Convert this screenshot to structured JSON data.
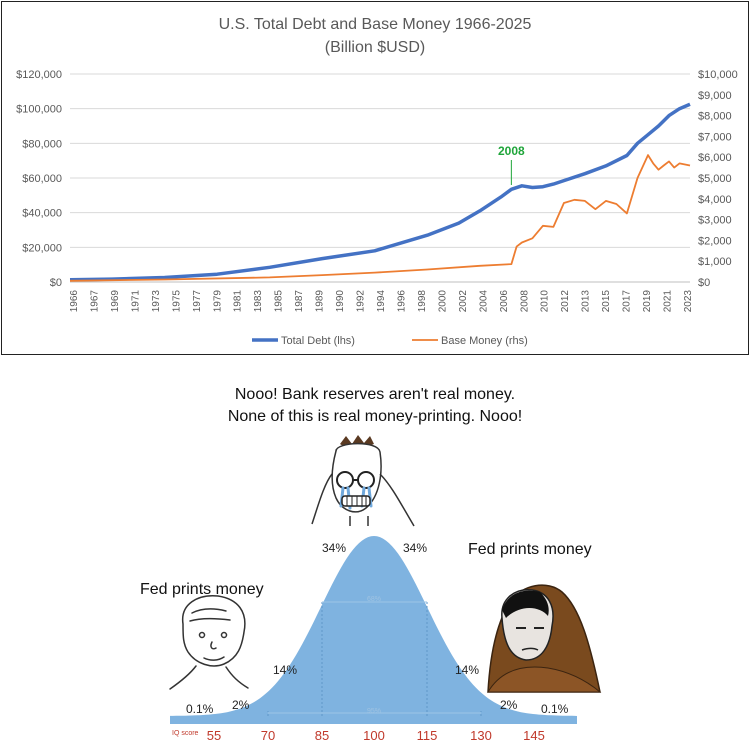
{
  "chart_data": {
    "type": "line",
    "title": "U.S. Total Debt and Base Money 1966-2025",
    "subtitle": "(Billion $USD)",
    "left_axis": {
      "ticks": [
        "$0",
        "$20,000",
        "$40,000",
        "$60,000",
        "$80,000",
        "$100,000",
        "$120,000"
      ],
      "range": [
        0,
        120000
      ]
    },
    "right_axis": {
      "ticks": [
        "$0",
        "$1,000",
        "$2,000",
        "$3,000",
        "$4,000",
        "$5,000",
        "$6,000",
        "$7,000",
        "$8,000",
        "$9,000",
        "$10,000"
      ],
      "range": [
        0,
        10000
      ]
    },
    "x_ticks": [
      "1966",
      "1967",
      "1969",
      "1971",
      "1973",
      "1975",
      "1977",
      "1979",
      "1981",
      "1983",
      "1985",
      "1987",
      "1989",
      "1990",
      "1992",
      "1994",
      "1996",
      "1998",
      "2000",
      "2002",
      "2004",
      "2006",
      "2008",
      "2010",
      "2012",
      "2013",
      "2015",
      "2017",
      "2019",
      "2021",
      "2023"
    ],
    "annotation": {
      "label": "2008",
      "x": 2008,
      "color": "#1fa53a"
    },
    "grid": "horizontal",
    "legend_position": "bottom",
    "series": [
      {
        "name": "Total Debt (lhs)",
        "axis": "left",
        "color": "#4472c4",
        "points": [
          [
            1966,
            1300
          ],
          [
            1970,
            1700
          ],
          [
            1975,
            2600
          ],
          [
            1980,
            4500
          ],
          [
            1985,
            8500
          ],
          [
            1990,
            13500
          ],
          [
            1995,
            18000
          ],
          [
            2000,
            27000
          ],
          [
            2003,
            34000
          ],
          [
            2005,
            41000
          ],
          [
            2007,
            49000
          ],
          [
            2008,
            53500
          ],
          [
            2009,
            55500
          ],
          [
            2010,
            54500
          ],
          [
            2011,
            55000
          ],
          [
            2012,
            56500
          ],
          [
            2013,
            58500
          ],
          [
            2015,
            62500
          ],
          [
            2017,
            67000
          ],
          [
            2019,
            73000
          ],
          [
            2020,
            80000
          ],
          [
            2021,
            85000
          ],
          [
            2022,
            90000
          ],
          [
            2023,
            96000
          ],
          [
            2024,
            100000
          ],
          [
            2025,
            102500
          ]
        ]
      },
      {
        "name": "Base Money (rhs)",
        "axis": "right",
        "color": "#ed7d31",
        "points": [
          [
            1966,
            60
          ],
          [
            1975,
            120
          ],
          [
            1985,
            220
          ],
          [
            1990,
            330
          ],
          [
            1995,
            450
          ],
          [
            2000,
            600
          ],
          [
            2005,
            780
          ],
          [
            2008,
            860
          ],
          [
            2008.5,
            1700
          ],
          [
            2009,
            1900
          ],
          [
            2010,
            2100
          ],
          [
            2011,
            2700
          ],
          [
            2012,
            2650
          ],
          [
            2013,
            3800
          ],
          [
            2014,
            3950
          ],
          [
            2015,
            3900
          ],
          [
            2016,
            3500
          ],
          [
            2017,
            3900
          ],
          [
            2018,
            3750
          ],
          [
            2019,
            3300
          ],
          [
            2020,
            5000
          ],
          [
            2021,
            6100
          ],
          [
            2021.5,
            5700
          ],
          [
            2022,
            5400
          ],
          [
            2022.5,
            5600
          ],
          [
            2023,
            5800
          ],
          [
            2023.5,
            5500
          ],
          [
            2024,
            5700
          ],
          [
            2025,
            5600
          ]
        ]
      }
    ]
  },
  "meme": {
    "caption_top_line1": "Nooo! Bank reserves aren't real money.",
    "caption_top_line2": "None of this is real money-printing. Nooo!",
    "label_left": "Fed prints money",
    "label_right": "Fed prints money",
    "percentages": [
      "0.1%",
      "2%",
      "14%",
      "34%",
      "34%",
      "14%",
      "2%",
      "0.1%"
    ],
    "inner_labels": [
      "68%",
      "95%"
    ],
    "iq_label": "IQ score",
    "iq_ticks": [
      "55",
      "70",
      "85",
      "100",
      "115",
      "130",
      "145"
    ],
    "bell_color": "#7fb3e0"
  }
}
